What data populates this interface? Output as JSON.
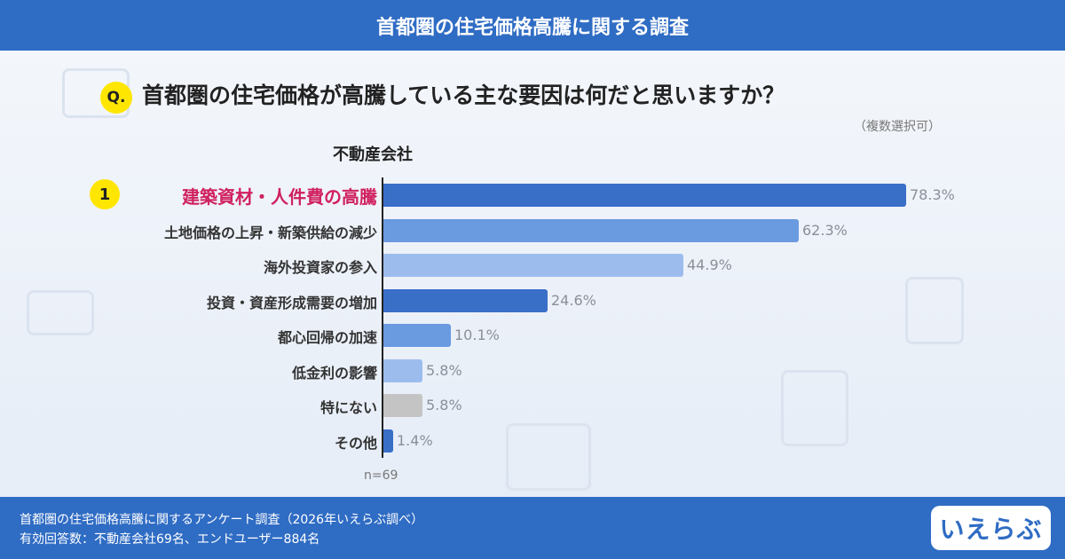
{
  "header": {
    "title": "首都圏の住宅価格高騰に関する調査"
  },
  "question": {
    "badge": "Q.",
    "text": "首都圏の住宅価格が高騰している主な要因は何だと思いますか？",
    "note": "（複数選択可）"
  },
  "subject": "不動産会社",
  "rank_badge": "1",
  "chart_data": {
    "type": "bar",
    "orientation": "horizontal",
    "categories": [
      "建築資材・人件費の高騰",
      "土地価格の上昇・新築供給の減少",
      "海外投資家の参入",
      "投資・資産形成需要の増加",
      "都心回帰の加速",
      "低金利の影響",
      "特にない",
      "その他"
    ],
    "values": [
      78.3,
      62.3,
      44.9,
      24.6,
      10.1,
      5.8,
      5.8,
      1.4
    ],
    "value_labels": [
      "78.3%",
      "62.3%",
      "44.9%",
      "24.6%",
      "10.1%",
      "5.8%",
      "5.8%",
      "1.4%"
    ],
    "colors": [
      "#3a6fc8",
      "#6a9ae0",
      "#9dbcee",
      "#3a6fc8",
      "#6a9ae0",
      "#9dbcee",
      "#c4c4c4",
      "#3a6fc8"
    ],
    "xlim": [
      0,
      100
    ],
    "n_label": "n=69"
  },
  "footer": {
    "line1": "首都圏の住宅価格高騰に関するアンケート調査（2026年いえらぶ調べ）",
    "line2": "有効回答数：不動産会社69名、エンドユーザー884名",
    "logo": "いえらぶ"
  }
}
